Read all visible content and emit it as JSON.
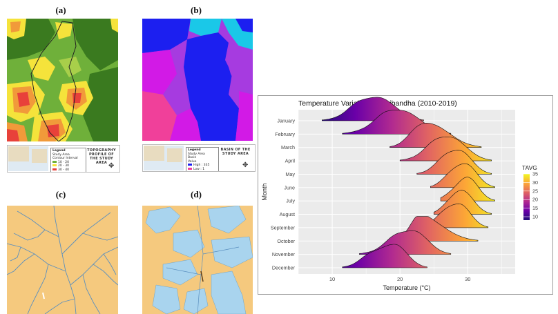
{
  "panels": {
    "a": {
      "label": "(a)",
      "legend_heading": "Legend",
      "legend_items": [
        "Study Area",
        "Contour Interval"
      ],
      "legend_values": [
        "10 - 20",
        "20 - 30",
        "30 - 40"
      ],
      "title": "TOPOGRAPHY PROFILE OF THE STUDY AREA"
    },
    "b": {
      "label": "(b)",
      "legend_heading": "Legend",
      "legend_items": [
        "Study Area",
        "Basin",
        "Value"
      ],
      "legend_values": [
        "High : 335",
        "Low : 1"
      ],
      "title": "BASIN OF THE STUDY AREA"
    },
    "c": {
      "label": "(c)"
    },
    "d": {
      "label": "(d)"
    }
  },
  "colors": {
    "topo_green_dark": "#3a7a1f",
    "topo_green": "#6fb03a",
    "topo_yellow": "#f5e33b",
    "topo_orange": "#f19a3a",
    "topo_red": "#e8413a",
    "basin_blue": "#1c1ff0",
    "basin_magenta": "#d21ae6",
    "basin_violet": "#a63be0",
    "basin_pink": "#f0409a",
    "stream_bg": "#f5c97e",
    "stream_line": "#5a8fbf",
    "water_light": "#a9d4ee"
  },
  "chart_data": {
    "type": "ridgeline",
    "title": "Temperature Variablity in Gaibandha (2010-2019)",
    "xlabel": "Temperature (°C)",
    "ylabel": "Month",
    "xlim": [
      5,
      37
    ],
    "xticks": [
      10,
      20,
      30
    ],
    "grid": true,
    "categories": [
      "January",
      "February",
      "March",
      "April",
      "May",
      "June",
      "July",
      "August",
      "September",
      "October",
      "November",
      "December"
    ],
    "densities": [
      {
        "month": "January",
        "min": 8.5,
        "max": 23.5,
        "peak": 16.7,
        "mean": 15.9
      },
      {
        "month": "February",
        "min": 11.5,
        "max": 27.5,
        "peak": 20.2,
        "mean": 20.0
      },
      {
        "month": "March",
        "min": 18.5,
        "max": 32.0,
        "peak": 24.3,
        "mean": 24.6
      },
      {
        "month": "April",
        "min": 20.0,
        "max": 33.5,
        "peak": 27.4,
        "mean": 27.3
      },
      {
        "month": "May",
        "min": 22.5,
        "max": 33.5,
        "peak": 28.8,
        "mean": 28.7
      },
      {
        "month": "June",
        "min": 24.5,
        "max": 34.0,
        "peak": 29.7,
        "mean": 29.6
      },
      {
        "month": "July",
        "min": 26.0,
        "max": 34.0,
        "peak": 30.0,
        "mean": 29.8
      },
      {
        "month": "August",
        "min": 25.0,
        "max": 33.5,
        "peak": 29.2,
        "mean": 29.3
      },
      {
        "month": "September",
        "min": 23.0,
        "max": 33.0,
        "peak": 28.8,
        "mean": 28.6
      },
      {
        "month": "October",
        "min": 19.0,
        "max": 31.5,
        "peak": 23.2,
        "mean": 25.3
      },
      {
        "month": "November",
        "min": 14.0,
        "max": 27.5,
        "peak": 22.0,
        "mean": 21.4
      },
      {
        "month": "December",
        "min": 11.5,
        "max": 24.0,
        "peak": 19.2,
        "mean": 17.6
      }
    ],
    "legend": {
      "title": "TAVG",
      "ticks": [
        10,
        15,
        20,
        25,
        30,
        35
      ],
      "range": [
        8,
        35
      ],
      "placement": "right"
    }
  }
}
